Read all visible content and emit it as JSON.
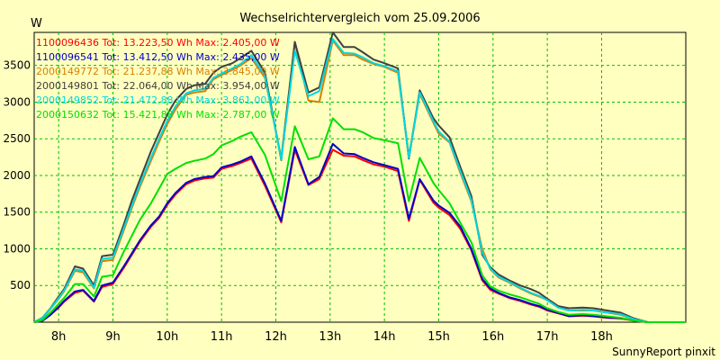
{
  "chart_data": {
    "type": "line",
    "title": "Wechselrichtervergleich vom 25.09.2006",
    "ylabel": "W",
    "xlabel": "",
    "footer": "SunnyReport pinxit",
    "ylim": [
      0,
      3950
    ],
    "xlim": [
      7.55,
      19.55
    ],
    "grid": true,
    "legend_position": "top-left",
    "y_ticks": [
      500,
      1000,
      1500,
      2000,
      2500,
      3000,
      3500
    ],
    "x_ticks": [
      {
        "value": 8,
        "label": "8h"
      },
      {
        "value": 9,
        "label": "9h"
      },
      {
        "value": 10,
        "label": "10h"
      },
      {
        "value": 11,
        "label": "11h"
      },
      {
        "value": 12,
        "label": "12h"
      },
      {
        "value": 13,
        "label": "13h"
      },
      {
        "value": 14,
        "label": "14h"
      },
      {
        "value": 15,
        "label": "15h"
      },
      {
        "value": 16,
        "label": "16h"
      },
      {
        "value": 17,
        "label": "17h"
      },
      {
        "value": 18,
        "label": "18h"
      }
    ],
    "x": [
      7.55,
      7.7,
      7.85,
      8.0,
      8.1,
      8.3,
      8.45,
      8.65,
      8.8,
      9.0,
      9.2,
      9.35,
      9.5,
      9.7,
      9.85,
      10.0,
      10.15,
      10.35,
      10.5,
      10.7,
      10.85,
      11.0,
      11.2,
      11.35,
      11.55,
      11.8,
      12.1,
      12.35,
      12.6,
      12.8,
      13.05,
      13.25,
      13.45,
      13.6,
      13.8,
      14.0,
      14.25,
      14.45,
      14.65,
      14.9,
      15.0,
      15.2,
      15.4,
      15.6,
      15.8,
      15.95,
      16.1,
      16.3,
      16.5,
      16.7,
      16.85,
      17.0,
      17.2,
      17.4,
      17.65,
      17.85,
      18.1,
      18.35,
      18.6,
      18.85,
      19.1,
      19.55
    ],
    "series": [
      {
        "name": "1100096436 Tot: 13.223,50 Wh Max: 2.405,00 W",
        "color": "#ff0000",
        "values": [
          0,
          20,
          100,
          200,
          280,
          400,
          430,
          280,
          480,
          520,
          740,
          920,
          1100,
          1300,
          1420,
          1600,
          1740,
          1880,
          1930,
          1960,
          1970,
          2090,
          2130,
          2170,
          2230,
          1860,
          1360,
          2350,
          1870,
          1950,
          2350,
          2270,
          2260,
          2210,
          2150,
          2120,
          2060,
          1380,
          1940,
          1630,
          1560,
          1460,
          1270,
          980,
          570,
          440,
          390,
          330,
          290,
          240,
          210,
          160,
          120,
          80,
          90,
          80,
          60,
          50,
          20,
          0,
          0,
          0
        ]
      },
      {
        "name": "1100096541 Tot: 13.412,50 Wh Max: 2.435,00 W",
        "color": "#0000cc",
        "values": [
          0,
          20,
          100,
          210,
          290,
          420,
          440,
          290,
          500,
          540,
          760,
          940,
          1120,
          1320,
          1440,
          1620,
          1760,
          1900,
          1950,
          1980,
          1990,
          2110,
          2150,
          2190,
          2260,
          1890,
          1380,
          2390,
          1880,
          1980,
          2430,
          2300,
          2290,
          2240,
          2180,
          2140,
          2090,
          1410,
          1950,
          1660,
          1590,
          1490,
          1300,
          1000,
          590,
          460,
          400,
          340,
          300,
          250,
          220,
          170,
          125,
          85,
          95,
          85,
          65,
          55,
          25,
          0,
          0,
          0
        ]
      },
      {
        "name": "2000149772 Tot: 21.237,88 Wh Max: 3.845,00 W",
        "color": "#d88000",
        "values": [
          0,
          50,
          180,
          320,
          420,
          700,
          680,
          460,
          830,
          850,
          1250,
          1560,
          1850,
          2200,
          2460,
          2700,
          2900,
          3100,
          3130,
          3150,
          3310,
          3370,
          3440,
          3500,
          3600,
          3330,
          2240,
          3820,
          3020,
          3000,
          3840,
          3640,
          3640,
          3580,
          3520,
          3480,
          3400,
          2270,
          3110,
          2720,
          2570,
          2450,
          2030,
          1650,
          1000,
          720,
          610,
          540,
          460,
          390,
          350,
          300,
          200,
          160,
          160,
          160,
          130,
          100,
          40,
          0,
          0,
          0
        ]
      },
      {
        "name": "2000149801 Tot: 22.064,00 Wh Max: 3.954,00 W",
        "color": "#404040",
        "values": [
          0,
          60,
          190,
          350,
          450,
          760,
          730,
          500,
          900,
          920,
          1330,
          1660,
          1950,
          2330,
          2580,
          2830,
          3020,
          3180,
          3230,
          3250,
          3400,
          3480,
          3530,
          3600,
          3700,
          3400,
          2210,
          3820,
          3130,
          3200,
          3950,
          3750,
          3750,
          3680,
          3580,
          3530,
          3460,
          2230,
          3160,
          2780,
          2680,
          2520,
          2110,
          1720,
          920,
          750,
          650,
          570,
          500,
          450,
          400,
          320,
          220,
          190,
          200,
          190,
          160,
          130,
          50,
          0,
          0,
          0
        ]
      },
      {
        "name": "2000149852 Tot: 21.472,88 Wh Max: 3.861,00 W",
        "color": "#00d8e0",
        "values": [
          0,
          55,
          185,
          330,
          430,
          720,
          700,
          470,
          860,
          880,
          1280,
          1590,
          1880,
          2240,
          2500,
          2740,
          2940,
          3120,
          3160,
          3180,
          3330,
          3390,
          3460,
          3520,
          3640,
          3350,
          2220,
          3700,
          3080,
          3150,
          3860,
          3670,
          3660,
          3610,
          3530,
          3490,
          3420,
          2240,
          3130,
          2740,
          2600,
          2460,
          2060,
          1670,
          950,
          730,
          620,
          550,
          470,
          400,
          360,
          300,
          200,
          160,
          170,
          160,
          130,
          110,
          40,
          0,
          0,
          0
        ]
      },
      {
        "name": "2000150632 Tot: 15.421,88 Wh Max: 2.787,00 W",
        "color": "#00e000",
        "values": [
          0,
          30,
          130,
          250,
          330,
          520,
          520,
          350,
          620,
          640,
          960,
          1180,
          1400,
          1620,
          1820,
          2020,
          2090,
          2170,
          2200,
          2230,
          2290,
          2410,
          2470,
          2530,
          2590,
          2280,
          1650,
          2670,
          2220,
          2260,
          2780,
          2630,
          2630,
          2590,
          2510,
          2480,
          2440,
          1650,
          2240,
          1900,
          1800,
          1620,
          1350,
          1090,
          640,
          490,
          430,
          380,
          340,
          290,
          250,
          190,
          140,
          100,
          110,
          100,
          80,
          60,
          20,
          0,
          0,
          0
        ]
      }
    ]
  }
}
